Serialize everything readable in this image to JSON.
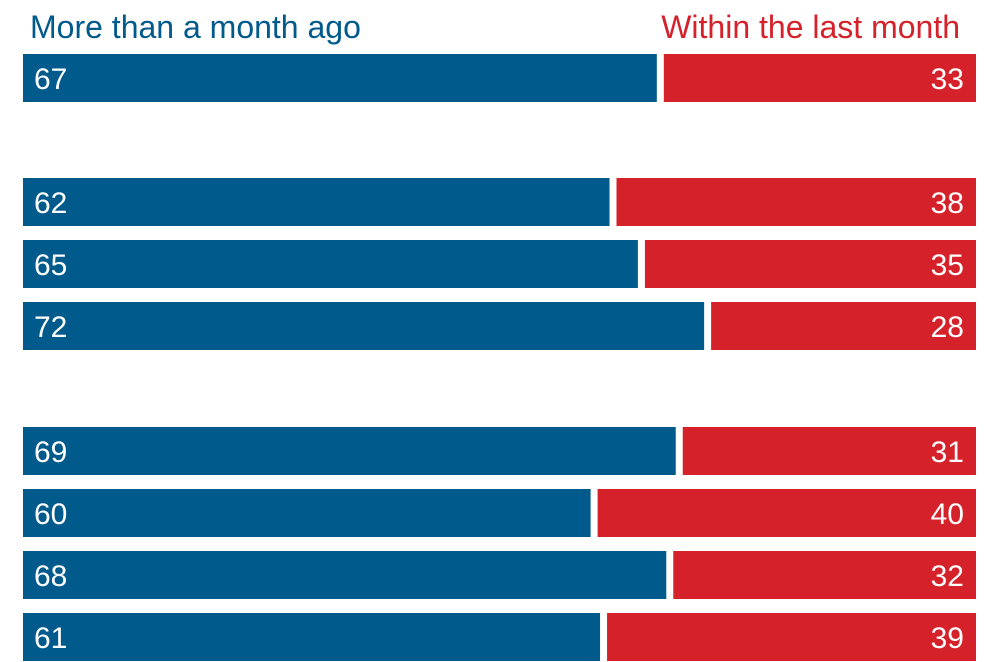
{
  "chart_data": {
    "type": "bar",
    "stacked": true,
    "orientation": "horizontal",
    "normalized_to": 100,
    "legend_placement": "top",
    "grid": false,
    "series": [
      {
        "name": "More than a month ago",
        "color": "#005A8C",
        "values": [
          67,
          62,
          65,
          72,
          69,
          60,
          68,
          61
        ]
      },
      {
        "name": "Within the last month",
        "color": "#D52129",
        "values": [
          33,
          38,
          35,
          28,
          31,
          40,
          32,
          39
        ]
      }
    ],
    "groups": [
      [
        0
      ],
      [
        1,
        2,
        3
      ],
      [
        4,
        5,
        6,
        7
      ]
    ]
  }
}
